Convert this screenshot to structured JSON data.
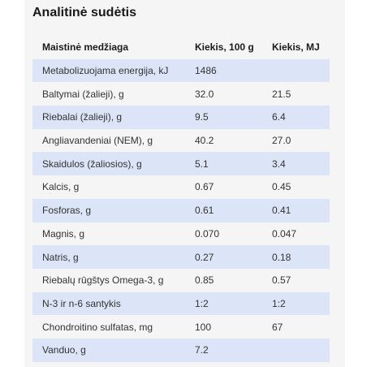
{
  "section": {
    "title": "Analitinė sudėtis"
  },
  "table": {
    "headers": [
      "Maistinė medžiaga",
      "Kiekis, 100 g",
      "Kiekis, MJ"
    ],
    "rows": [
      [
        "Metabolizuojama energija, kJ",
        "1486",
        ""
      ],
      [
        "Baltymai (žalieji), g",
        "32.0",
        "21.5"
      ],
      [
        "Riebalai (žalieji), g",
        "9.5",
        "6.4"
      ],
      [
        "Angliavandeniai (NEM), g",
        "40.2",
        "27.0"
      ],
      [
        "Skaidulos (žaliosios),  g",
        "5.1",
        "3.4"
      ],
      [
        "Kalcis, g",
        "0.67",
        "0.45"
      ],
      [
        "Fosforas, g",
        "0.61",
        "0.41"
      ],
      [
        "Magnis, g",
        "0.070",
        "0.047"
      ],
      [
        "Natris, g",
        "0.27",
        "0.18"
      ],
      [
        "Riebalų rūgštys Omega-3, g",
        "0.85",
        "0.57"
      ],
      [
        "N-3 ir n-6 santykis",
        "1:2",
        "1:2"
      ],
      [
        "Chondroitino sulfatas, mg",
        "100",
        "67"
      ],
      [
        "Vanduo, g",
        "7.2",
        ""
      ]
    ]
  },
  "colors": {
    "panel_background": "#f5f5f5",
    "row_stripe": "#dbe5f7",
    "title_text": "#1a1a1a"
  }
}
